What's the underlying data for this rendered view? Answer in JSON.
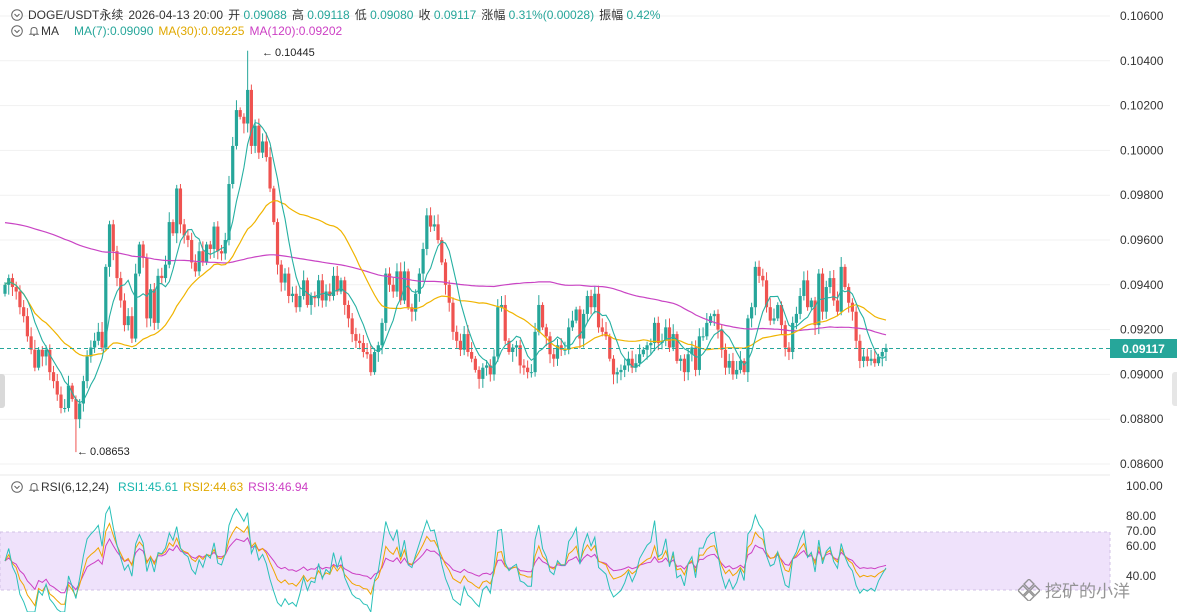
{
  "header": {
    "symbol": "DOGE/USDT永续",
    "datetime": "2026-04-13 20:00",
    "open_label": "开",
    "open": "0.09088",
    "high_label": "高",
    "high": "0.09118",
    "low_label": "低",
    "low": "0.09080",
    "close_label": "收",
    "close": "0.09117",
    "change_label": "涨幅",
    "change": "0.31%(0.00028)",
    "amplitude_label": "振幅",
    "amplitude": "0.42%"
  },
  "ma_row": {
    "name": "MA",
    "ma7": "MA(7):0.09090",
    "ma30": "MA(30):0.09225",
    "ma120": "MA(120):0.09202"
  },
  "rsi_row": {
    "name": "RSI(6,12,24)",
    "rsi1": "RSI1:45.61",
    "rsi2": "RSI2:44.63",
    "rsi3": "RSI3:46.94"
  },
  "annotations": {
    "high": "0.10445",
    "low": "0.08653"
  },
  "current_price": "0.09117",
  "watermark": "挖矿的小洋",
  "colors": {
    "up": "#26a69a",
    "down": "#ef5350",
    "ma7": "#26b0a2",
    "ma30": "#f0b400",
    "ma120": "#c944c4",
    "rsi_band": "#efe2fb"
  },
  "chart_data": [
    {
      "type": "candlestick",
      "y_ticks": [
        "0.10600",
        "0.10400",
        "0.10200",
        "0.10000",
        "0.09800",
        "0.09600",
        "0.09400",
        "0.09200",
        "0.09000",
        "0.08800",
        "0.08600"
      ],
      "ylim": [
        0.0856,
        0.1063
      ],
      "last_price": 0.09117,
      "high_mark": 0.10445,
      "low_mark": 0.08653,
      "ma_series": [
        {
          "name": "MA(7)",
          "last": 0.0909
        },
        {
          "name": "MA(30)",
          "last": 0.09225
        },
        {
          "name": "MA(120)",
          "last": 0.09202
        }
      ],
      "close": [
        0.094,
        0.0943,
        0.0939,
        0.0937,
        0.093,
        0.0926,
        0.0917,
        0.0911,
        0.0903,
        0.0911,
        0.0908,
        0.0911,
        0.0901,
        0.0897,
        0.0891,
        0.0885,
        0.0885,
        0.0895,
        0.0889,
        0.088,
        0.0887,
        0.0897,
        0.0908,
        0.0912,
        0.0915,
        0.0919,
        0.0912,
        0.0948,
        0.0967,
        0.0955,
        0.0943,
        0.0933,
        0.0922,
        0.0926,
        0.0916,
        0.0945,
        0.0958,
        0.0952,
        0.0925,
        0.0938,
        0.0923,
        0.0944,
        0.0943,
        0.0949,
        0.0968,
        0.0963,
        0.0983,
        0.0967,
        0.0962,
        0.096,
        0.095,
        0.0946,
        0.0955,
        0.095,
        0.0958,
        0.0956,
        0.0966,
        0.0955,
        0.0954,
        0.096,
        0.0985,
        0.1002,
        0.1018,
        0.1015,
        0.1012,
        0.1027,
        0.1002,
        0.1011,
        0.0999,
        0.1004,
        0.0997,
        0.0983,
        0.0968,
        0.0949,
        0.0941,
        0.0945,
        0.0935,
        0.0936,
        0.093,
        0.0935,
        0.0942,
        0.0931,
        0.0935,
        0.0934,
        0.0942,
        0.0933,
        0.0937,
        0.0935,
        0.0944,
        0.0937,
        0.0942,
        0.0931,
        0.0925,
        0.0918,
        0.0915,
        0.0914,
        0.091,
        0.0909,
        0.0901,
        0.091,
        0.0913,
        0.0923,
        0.0945,
        0.094,
        0.0937,
        0.0946,
        0.0933,
        0.0946,
        0.093,
        0.0928,
        0.0936,
        0.0945,
        0.0956,
        0.0971,
        0.0966,
        0.0967,
        0.096,
        0.095,
        0.094,
        0.0932,
        0.0919,
        0.0915,
        0.0911,
        0.0918,
        0.091,
        0.0907,
        0.0902,
        0.0898,
        0.0903,
        0.0904,
        0.09,
        0.0908,
        0.093,
        0.0931,
        0.0915,
        0.091,
        0.0912,
        0.0913,
        0.0904,
        0.0903,
        0.0901,
        0.0901,
        0.0919,
        0.0931,
        0.0921,
        0.0917,
        0.0909,
        0.0907,
        0.0913,
        0.0911,
        0.0911,
        0.0921,
        0.0924,
        0.0929,
        0.0916,
        0.0927,
        0.0935,
        0.093,
        0.0936,
        0.0921,
        0.0919,
        0.0917,
        0.0907,
        0.09,
        0.0901,
        0.0902,
        0.0904,
        0.0907,
        0.0903,
        0.0905,
        0.0909,
        0.0911,
        0.0913,
        0.0914,
        0.0923,
        0.0914,
        0.0915,
        0.0921,
        0.0912,
        0.0918,
        0.0906,
        0.0907,
        0.0901,
        0.0909,
        0.0912,
        0.0902,
        0.0917,
        0.0917,
        0.0923,
        0.0926,
        0.0927,
        0.092,
        0.0911,
        0.0903,
        0.0906,
        0.09,
        0.0902,
        0.0906,
        0.0901,
        0.0925,
        0.093,
        0.0948,
        0.0944,
        0.0942,
        0.093,
        0.0924,
        0.0925,
        0.0931,
        0.0922,
        0.0912,
        0.091,
        0.0923,
        0.0927,
        0.0935,
        0.0942,
        0.093,
        0.0933,
        0.0922,
        0.0945,
        0.0928,
        0.0939,
        0.0943,
        0.0933,
        0.0928,
        0.0948,
        0.0939,
        0.0932,
        0.0928,
        0.0915,
        0.0906,
        0.0908,
        0.0906,
        0.0907,
        0.0905,
        0.0908,
        0.091,
        0.09117
      ]
    },
    {
      "type": "line",
      "name": "RSI(6,12,24)",
      "y_ticks": [
        "100.00",
        "80.00",
        "70.00",
        "60.00",
        "40.00"
      ],
      "ylim": [
        16,
        100
      ],
      "band": [
        30,
        70
      ],
      "series": [
        {
          "name": "RSI1",
          "last": 45.61
        },
        {
          "name": "RSI2",
          "last": 44.63
        },
        {
          "name": "RSI3",
          "last": 46.94
        }
      ]
    }
  ]
}
